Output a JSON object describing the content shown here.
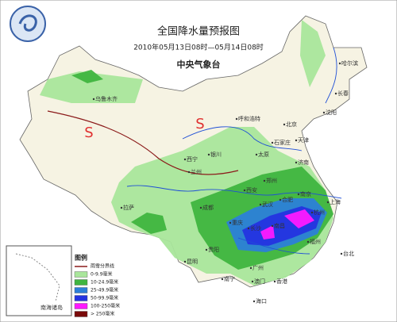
{
  "header": {
    "title": "全国降水量预报图",
    "period": "2010年05月13日08时—05月14日08时",
    "agency": "中央气象台"
  },
  "cities": [
    "乌鲁木齐",
    "哈尔滨",
    "长春",
    "沈阳",
    "北京",
    "天津",
    "石家庄",
    "太原",
    "呼和浩特",
    "银川",
    "西宁",
    "兰州",
    "济南",
    "郑州",
    "西安",
    "南京",
    "合肥",
    "上海",
    "杭州",
    "武汉",
    "长沙",
    "南昌",
    "福州",
    "重庆",
    "成都",
    "贵阳",
    "昆明",
    "南宁",
    "广州",
    "香港",
    "澳门",
    "海口",
    "拉萨",
    "台北"
  ],
  "legend": {
    "title": "图例",
    "items": [
      {
        "label": "雨雪分界线",
        "color": "#8b1a1a"
      },
      {
        "label": "0-9.9毫米",
        "color": "#a9e69b"
      },
      {
        "label": "10-24.9毫米",
        "color": "#3fb53f"
      },
      {
        "label": "25-49.9毫米",
        "color": "#2c7fd8"
      },
      {
        "label": "50-99.9毫米",
        "color": "#2433e0"
      },
      {
        "label": "100-250毫米",
        "color": "#ff19ff"
      },
      {
        "label": "> 250毫米",
        "color": "#7a0a0a"
      }
    ]
  },
  "inset": {
    "label": "南海诸岛"
  }
}
